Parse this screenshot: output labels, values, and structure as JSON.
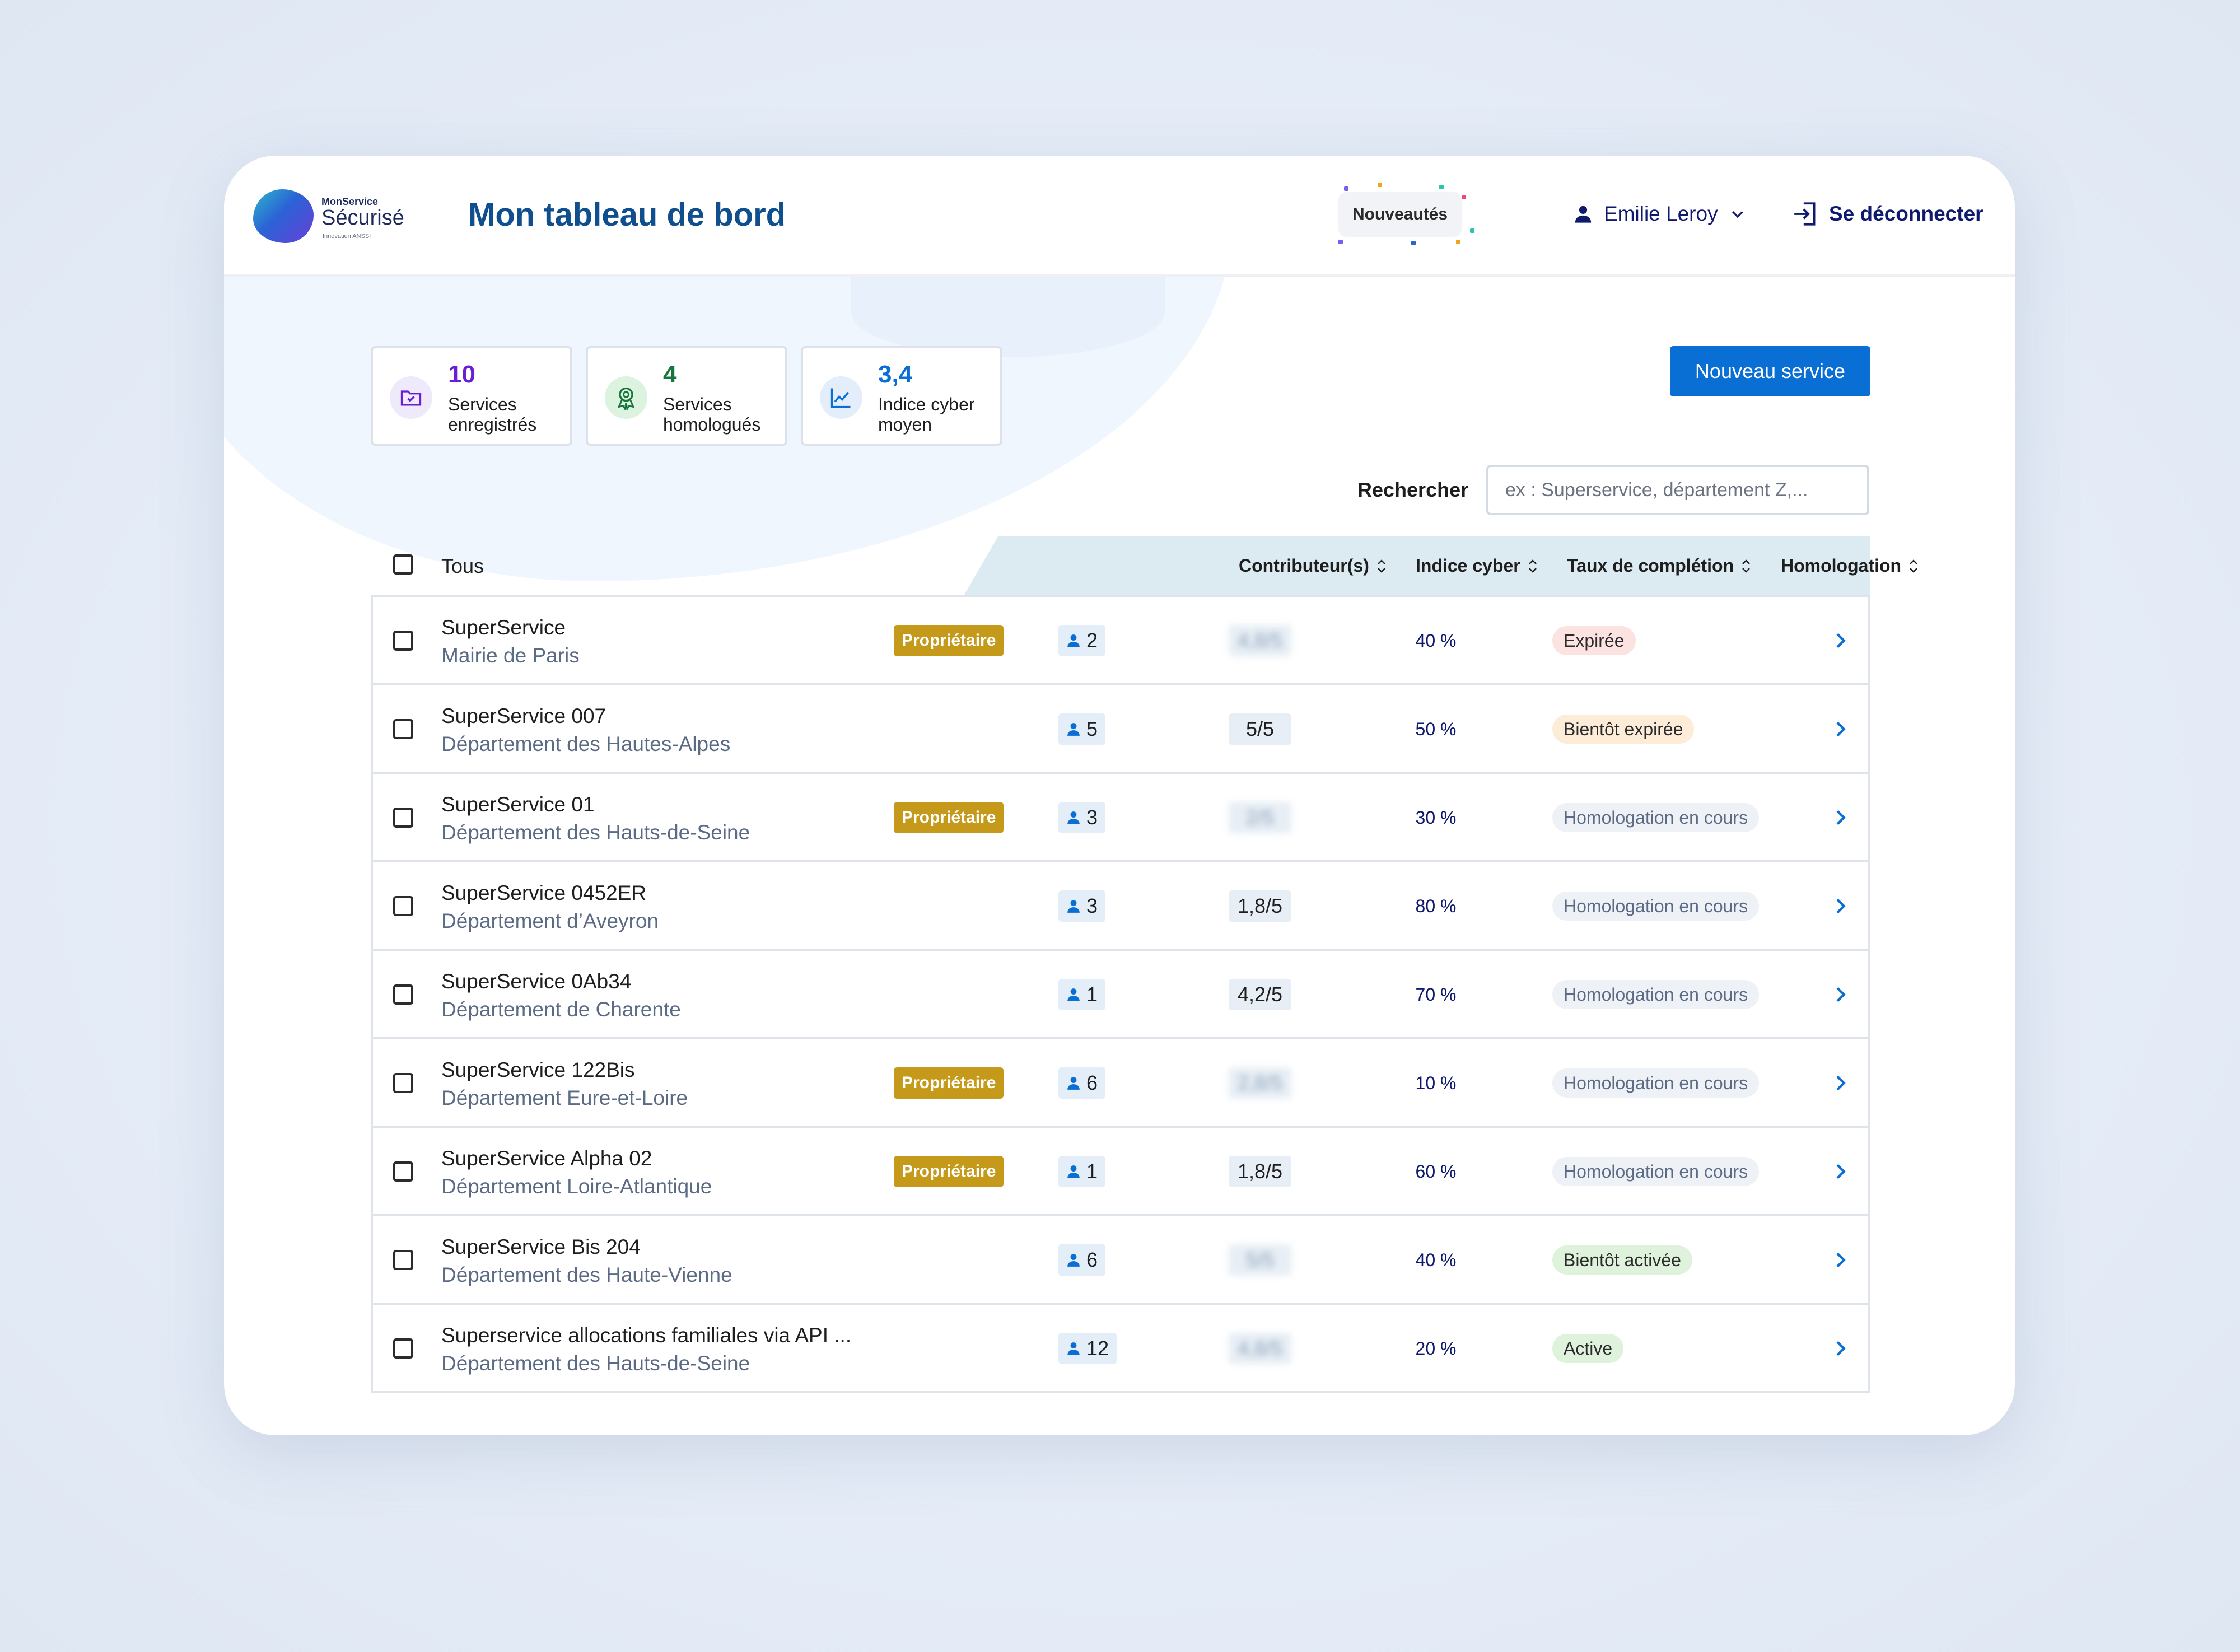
{
  "header": {
    "logo": {
      "line1": "MonService",
      "line2": "Sécurisé",
      "line3": "Innovation ANSSI"
    },
    "title": "Mon tableau de bord",
    "news_label": "Nouveautés",
    "user_name": "Emilie Leroy",
    "logout_label": "Se déconnecter"
  },
  "stats": [
    {
      "value": "10",
      "label": "Services enregistrés",
      "color": "#6a1fd6",
      "icon": "folder-check-icon"
    },
    {
      "value": "4",
      "label": "Services homologués",
      "color": "#18753c",
      "icon": "award-icon"
    },
    {
      "value": "3,4",
      "label": "Indice cyber moyen",
      "color": "#0a6fd4",
      "icon": "line-chart-icon"
    }
  ],
  "new_service_label": "Nouveau service",
  "search": {
    "label": "Rechercher",
    "placeholder": "ex : Superservice, département Z,..."
  },
  "table": {
    "select_all_label": "Tous",
    "headers": {
      "contributors": "Contributeur(s)",
      "cyber_index": "Indice cyber",
      "completion": "Taux de complétion",
      "homologation": "Homologation"
    },
    "owner_label": "Propriétaire",
    "rows": [
      {
        "name": "SuperService",
        "org": "Mairie de Paris",
        "owner": true,
        "contributors": "2",
        "cyber": "4,8/5",
        "cyber_blurred": true,
        "completion": "40 %",
        "status": "Expirée",
        "status_kind": "expired"
      },
      {
        "name": "SuperService 007",
        "org": "Département des Hautes-Alpes",
        "owner": false,
        "contributors": "5",
        "cyber": "5/5",
        "cyber_blurred": false,
        "completion": "50 %",
        "status": "Bientôt expirée",
        "status_kind": "soon-expired"
      },
      {
        "name": "SuperService 01",
        "org": "Département des Hauts-de-Seine",
        "owner": true,
        "contributors": "3",
        "cyber": "2/5",
        "cyber_blurred": true,
        "completion": "30 %",
        "status": "Homologation en cours",
        "status_kind": "in-progress"
      },
      {
        "name": "SuperService 0452ER",
        "org": "Département d’Aveyron",
        "owner": false,
        "contributors": "3",
        "cyber": "1,8/5",
        "cyber_blurred": false,
        "completion": "80 %",
        "status": "Homologation en cours",
        "status_kind": "in-progress"
      },
      {
        "name": "SuperService 0Ab34",
        "org": "Département de Charente",
        "owner": false,
        "contributors": "1",
        "cyber": "4,2/5",
        "cyber_blurred": false,
        "completion": "70 %",
        "status": "Homologation en cours",
        "status_kind": "in-progress"
      },
      {
        "name": "SuperService 122Bis",
        "org": "Département Eure-et-Loire",
        "owner": true,
        "contributors": "6",
        "cyber": "2,8/5",
        "cyber_blurred": true,
        "completion": "10 %",
        "status": "Homologation en cours",
        "status_kind": "in-progress"
      },
      {
        "name": "SuperService Alpha 02",
        "org": "Département Loire-Atlantique",
        "owner": true,
        "contributors": "1",
        "cyber": "1,8/5",
        "cyber_blurred": false,
        "completion": "60 %",
        "status": "Homologation en cours",
        "status_kind": "in-progress"
      },
      {
        "name": "SuperService Bis 204",
        "org": "Département des Haute-Vienne",
        "owner": false,
        "contributors": "6",
        "cyber": "5/5",
        "cyber_blurred": true,
        "completion": "40 %",
        "status": "Bientôt activée",
        "status_kind": "soon-active"
      },
      {
        "name": "Superservice allocations familiales via API ...",
        "org": "Département des Hauts-de-Seine",
        "owner": false,
        "contributors": "12",
        "cyber": "4,8/5",
        "cyber_blurred": true,
        "completion": "20 %",
        "status": "Active",
        "status_kind": "active"
      }
    ]
  },
  "status_colors": {
    "expired": {
      "bg": "#fde2e2",
      "fg": "#2b2b2b"
    },
    "soon-expired": {
      "bg": "#fdecd8",
      "fg": "#2b2b2b"
    },
    "in-progress": {
      "bg": "#eef1f5",
      "fg": "#5b6b85"
    },
    "soon-active": {
      "bg": "#dff3dc",
      "fg": "#2b2b2b"
    },
    "active": {
      "bg": "#dff3dc",
      "fg": "#2b2b2b"
    }
  }
}
